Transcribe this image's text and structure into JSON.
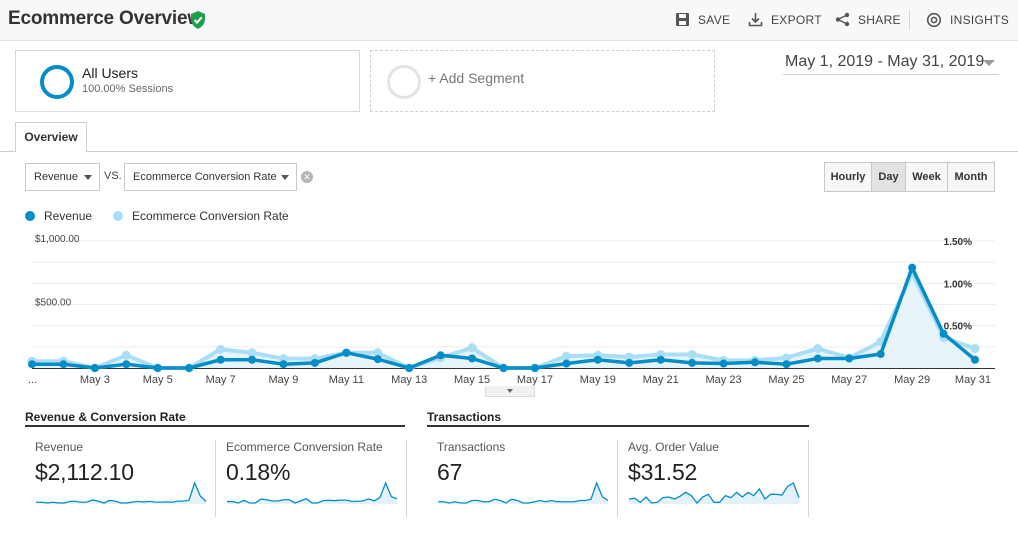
{
  "header": {
    "title": "Ecommerce Overview",
    "save_label": "SAVE",
    "export_label": "EXPORT",
    "share_label": "SHARE",
    "insights_label": "INSIGHTS"
  },
  "segments": {
    "all_users": {
      "name": "All Users",
      "sub": "100.00% Sessions"
    },
    "add_label": "+ Add Segment"
  },
  "date_range": "May 1, 2019 - May 31, 2019",
  "tabs": [
    {
      "label": "Overview"
    }
  ],
  "metric_selector": {
    "primary": "Revenue",
    "vs": "VS.",
    "secondary": "Ecommerce Conversion Rate"
  },
  "granularity": [
    "Hourly",
    "Day",
    "Week",
    "Month"
  ],
  "granularity_selected": "Day",
  "colors": {
    "revenue": "#058dc7",
    "conversion": "#a9def5",
    "area": "#e6f4fa"
  },
  "chart_data": {
    "type": "line",
    "x": [
      "May 1",
      "May 2",
      "May 3",
      "May 4",
      "May 5",
      "May 6",
      "May 7",
      "May 8",
      "May 9",
      "May 10",
      "May 11",
      "May 12",
      "May 13",
      "May 14",
      "May 15",
      "May 16",
      "May 17",
      "May 18",
      "May 19",
      "May 20",
      "May 21",
      "May 22",
      "May 23",
      "May 24",
      "May 25",
      "May 26",
      "May 27",
      "May 28",
      "May 29",
      "May 30",
      "May 31"
    ],
    "x_tick_labels": [
      "...",
      "May 3",
      "May 5",
      "May 7",
      "May 9",
      "May 11",
      "May 13",
      "May 15",
      "May 17",
      "May 19",
      "May 21",
      "May 23",
      "May 25",
      "May 27",
      "May 29",
      "May 31"
    ],
    "x_tick_index": [
      0,
      2,
      4,
      6,
      8,
      10,
      12,
      14,
      16,
      18,
      20,
      22,
      24,
      26,
      28,
      30
    ],
    "series": [
      {
        "name": "Revenue",
        "axis": "left",
        "values": [
          30,
          30,
          0,
          30,
          0,
          0,
          65,
          65,
          30,
          40,
          120,
          70,
          0,
          100,
          75,
          0,
          0,
          35,
          65,
          40,
          65,
          40,
          35,
          45,
          30,
          75,
          75,
          110,
          790,
          270,
          65
        ]
      },
      {
        "name": "Ecommerce Conversion Rate",
        "axis": "right",
        "values": [
          0.08,
          0.08,
          0.0,
          0.15,
          0.0,
          0.0,
          0.22,
          0.18,
          0.11,
          0.11,
          0.18,
          0.18,
          0.0,
          0.12,
          0.24,
          0.0,
          0.0,
          0.14,
          0.15,
          0.13,
          0.16,
          0.16,
          0.09,
          0.09,
          0.12,
          0.23,
          0.12,
          0.31,
          1.12,
          0.36,
          0.23
        ]
      }
    ],
    "left_axis": {
      "labels": [
        "$1,000.00",
        "$500.00"
      ],
      "range": [
        0,
        1000
      ]
    },
    "right_axis": {
      "labels": [
        "1.50%",
        "1.00%",
        "0.50%"
      ],
      "range": [
        0,
        1.5
      ]
    },
    "grid": true,
    "legend": "top-left"
  },
  "scorecards": {
    "group1_title": "Revenue & Conversion Rate",
    "group2_title": "Transactions",
    "cards": [
      {
        "label": "Revenue",
        "value": "$2,112.10",
        "spark": [
          30,
          30,
          0,
          30,
          0,
          0,
          65,
          65,
          30,
          40,
          120,
          70,
          0,
          100,
          75,
          0,
          0,
          35,
          65,
          40,
          65,
          40,
          35,
          45,
          30,
          75,
          75,
          110,
          790,
          270,
          65
        ]
      },
      {
        "label": "Ecommerce Conversion Rate",
        "value": "0.18%",
        "spark": [
          0.08,
          0.08,
          0.0,
          0.15,
          0.0,
          0.0,
          0.22,
          0.18,
          0.11,
          0.11,
          0.18,
          0.18,
          0.0,
          0.12,
          0.24,
          0.0,
          0.0,
          0.14,
          0.15,
          0.13,
          0.16,
          0.16,
          0.09,
          0.09,
          0.12,
          0.23,
          0.12,
          0.31,
          1.12,
          0.36,
          0.23
        ]
      },
      {
        "label": "Transactions",
        "value": "67",
        "spark": [
          1,
          1,
          0,
          1,
          0,
          0,
          2,
          2,
          1,
          1,
          3,
          2,
          0,
          3,
          2,
          0,
          0,
          1,
          2,
          1,
          2,
          1,
          1,
          1,
          1,
          2,
          2,
          3,
          16,
          5,
          2
        ]
      },
      {
        "label": "Avg. Order Value",
        "value": "$31.52",
        "spark": [
          30,
          31,
          25,
          33,
          24,
          25,
          32,
          33,
          30,
          34,
          40,
          35,
          24,
          33,
          37,
          25,
          25,
          35,
          32,
          40,
          33,
          40,
          35,
          45,
          30,
          37,
          37,
          36,
          49,
          54,
          32
        ]
      }
    ]
  }
}
